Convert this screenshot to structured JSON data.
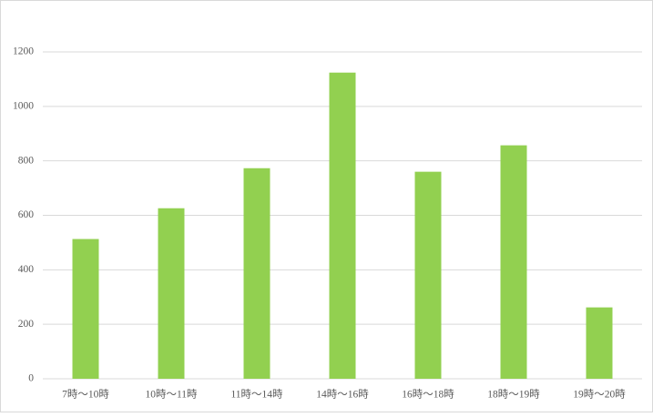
{
  "chart_data": {
    "type": "bar",
    "categories": [
      "7時～10時",
      "10時～11時",
      "11時～14時",
      "14時～16時",
      "16時～18時",
      "18時～19時",
      "19時～20時"
    ],
    "values": [
      513,
      626,
      773,
      1124,
      760,
      857,
      262
    ],
    "color": "#92d050",
    "ylim": [
      0,
      1200
    ],
    "yticks": [
      0,
      200,
      400,
      600,
      800,
      1000,
      1200
    ],
    "grid": true
  }
}
